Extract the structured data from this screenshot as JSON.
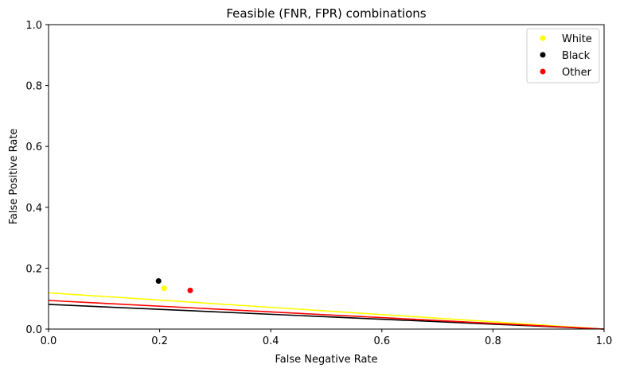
{
  "chart_data": {
    "type": "scatter",
    "title": "Feasible (FNR, FPR) combinations",
    "xlabel": "False Negative Rate",
    "ylabel": "False Positive Rate",
    "xlim": [
      0.0,
      1.0
    ],
    "ylim": [
      0.0,
      1.0
    ],
    "xticks": [
      "0.0",
      "0.2",
      "0.4",
      "0.6",
      "0.8",
      "1.0"
    ],
    "yticks": [
      "0.0",
      "0.2",
      "0.4",
      "0.6",
      "0.8",
      "1.0"
    ],
    "grid": false,
    "legend_position": "top-right",
    "series": [
      {
        "name": "White",
        "color": "#ffff00",
        "point": [
          0.208,
          0.134
        ],
        "line": [
          [
            0.0,
            0.119
          ],
          [
            1.0,
            0.0
          ]
        ]
      },
      {
        "name": "Black",
        "color": "#000000",
        "point": [
          0.198,
          0.158
        ],
        "line": [
          [
            0.0,
            0.081
          ],
          [
            1.0,
            0.0
          ]
        ]
      },
      {
        "name": "Other",
        "color": "#ff0000",
        "point": [
          0.255,
          0.127
        ],
        "line": [
          [
            0.0,
            0.094
          ],
          [
            1.0,
            0.0
          ]
        ]
      }
    ]
  }
}
